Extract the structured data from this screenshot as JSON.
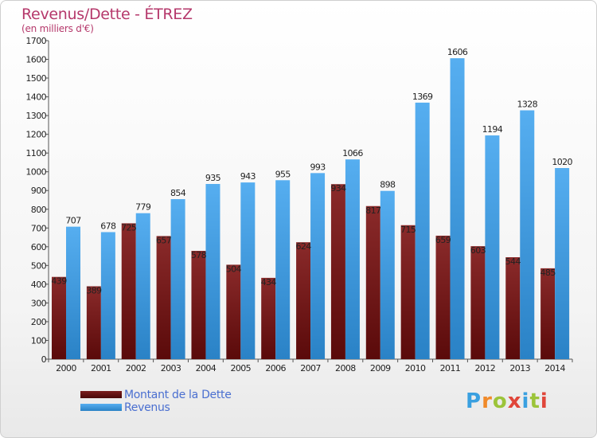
{
  "title": "Revenus/Dette - ÉTREZ",
  "subtitle": "(en milliers d'€)",
  "logo": "Proxiti",
  "colors": {
    "dette": "#7a1d1d",
    "revenus": "#3c96dc",
    "title": "#b5386b",
    "legend_text": "#4a6fd0"
  },
  "legend": [
    {
      "label": "Montant de la Dette",
      "color": "#7a1d1d"
    },
    {
      "label": "Revenus",
      "color": "#3c96dc"
    }
  ],
  "chart_data": {
    "type": "bar",
    "title": "Revenus/Dette - ÉTREZ",
    "subtitle": "(en milliers d'€)",
    "categories": [
      "2000",
      "2001",
      "2002",
      "2003",
      "2004",
      "2005",
      "2006",
      "2007",
      "2008",
      "2009",
      "2010",
      "2011",
      "2012",
      "2013",
      "2014"
    ],
    "series": [
      {
        "name": "Montant de la Dette",
        "values": [
          439,
          389,
          725,
          657,
          578,
          504,
          434,
          624,
          934,
          817,
          715,
          659,
          603,
          544,
          485
        ]
      },
      {
        "name": "Revenus",
        "values": [
          707,
          678,
          779,
          854,
          935,
          943,
          955,
          993,
          1066,
          898,
          1369,
          1606,
          1194,
          1328,
          1020
        ]
      }
    ],
    "ylim": [
      0,
      1700
    ],
    "yticks": [
      0,
      100,
      200,
      300,
      400,
      500,
      600,
      700,
      800,
      900,
      1000,
      1100,
      1200,
      1300,
      1400,
      1500,
      1600,
      1700
    ],
    "grid": false,
    "legend_position": "bottom-left"
  }
}
